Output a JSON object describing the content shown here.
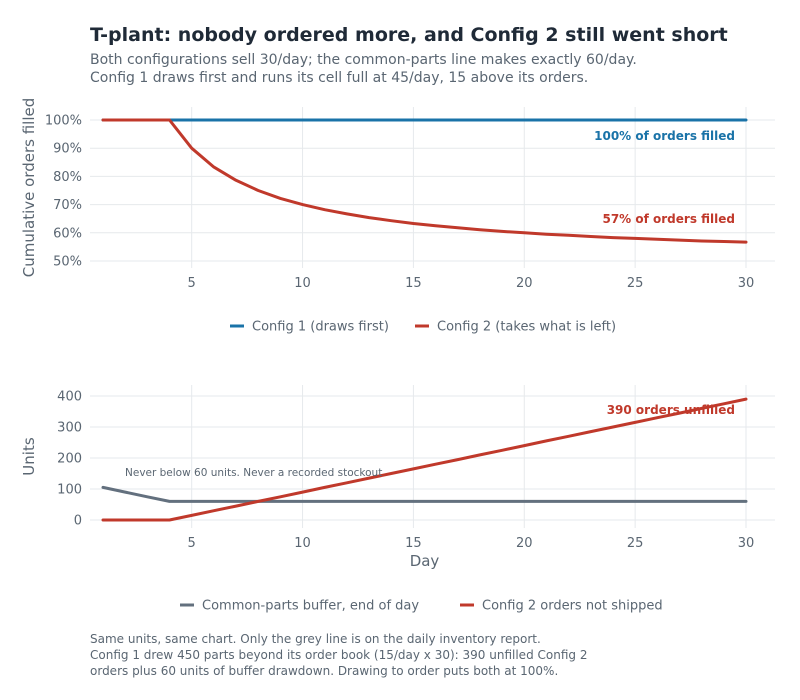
{
  "title": "T-plant: nobody ordered more, and Config 2 still went short",
  "subtitle": [
    "Both configurations sell 30/day; the common-parts line makes exactly 60/day.",
    "Config 1 draws first and runs its cell full at 45/day, 15 above its orders."
  ],
  "footnote": [
    "Same units, same chart. Only the grey line is on the daily inventory report.",
    "Config 1 drew 450 parts beyond its order book (15/day x 30): 390 unfilled Config 2",
    "orders plus 60 units of buffer drawdown. Drawing to order puts both at 100%."
  ],
  "chart_data": [
    {
      "type": "line",
      "ylabel": "Cumulative orders filled",
      "xlabel": "",
      "xlim": [
        1,
        30
      ],
      "ylim": [
        50,
        100
      ],
      "xticks": [
        5,
        10,
        15,
        20,
        25,
        30
      ],
      "yticks": [
        50,
        60,
        70,
        80,
        90,
        100
      ],
      "ytick_labels": [
        "50%",
        "60%",
        "70%",
        "80%",
        "90%",
        "100%"
      ],
      "x": [
        1,
        2,
        3,
        4,
        5,
        6,
        7,
        8,
        9,
        10,
        11,
        12,
        13,
        14,
        15,
        16,
        17,
        18,
        19,
        20,
        21,
        22,
        23,
        24,
        25,
        26,
        27,
        28,
        29,
        30
      ],
      "series": [
        {
          "name": "Config 1 (draws first)",
          "color": "#1a73a8",
          "values": [
            100,
            100,
            100,
            100,
            100,
            100,
            100,
            100,
            100,
            100,
            100,
            100,
            100,
            100,
            100,
            100,
            100,
            100,
            100,
            100,
            100,
            100,
            100,
            100,
            100,
            100,
            100,
            100,
            100,
            100
          ]
        },
        {
          "name": "Config 2 (takes what is left)",
          "color": "#c0392b",
          "values": [
            100,
            100,
            100,
            100,
            90,
            83.3,
            78.6,
            75,
            72.2,
            70,
            68.2,
            66.7,
            65.4,
            64.3,
            63.3,
            62.5,
            61.8,
            61.1,
            60.5,
            60,
            59.5,
            59.1,
            58.7,
            58.3,
            58,
            57.7,
            57.4,
            57.1,
            56.9,
            56.7
          ]
        }
      ],
      "annotations": [
        {
          "text": "100% of orders filled",
          "color": "#1a73a8"
        },
        {
          "text": "57% of orders filled",
          "color": "#c0392b"
        }
      ],
      "legend": "bottom"
    },
    {
      "type": "line",
      "ylabel": "Units",
      "xlabel": "Day",
      "xlim": [
        1,
        30
      ],
      "ylim": [
        0,
        400
      ],
      "xticks": [
        5,
        10,
        15,
        20,
        25,
        30
      ],
      "yticks": [
        0,
        100,
        200,
        300,
        400
      ],
      "ytick_labels": [
        "0",
        "100",
        "200",
        "300",
        "400"
      ],
      "x": [
        1,
        2,
        3,
        4,
        5,
        6,
        7,
        8,
        9,
        10,
        11,
        12,
        13,
        14,
        15,
        16,
        17,
        18,
        19,
        20,
        21,
        22,
        23,
        24,
        25,
        26,
        27,
        28,
        29,
        30
      ],
      "series": [
        {
          "name": "Common-parts buffer, end of day",
          "color": "#63707e",
          "values": [
            105,
            90,
            75,
            60,
            60,
            60,
            60,
            60,
            60,
            60,
            60,
            60,
            60,
            60,
            60,
            60,
            60,
            60,
            60,
            60,
            60,
            60,
            60,
            60,
            60,
            60,
            60,
            60,
            60,
            60
          ]
        },
        {
          "name": "Config 2 orders not shipped",
          "color": "#c0392b",
          "values": [
            0,
            0,
            0,
            0,
            15,
            30,
            45,
            60,
            75,
            90,
            105,
            120,
            135,
            150,
            165,
            180,
            195,
            210,
            225,
            240,
            255,
            270,
            285,
            300,
            315,
            330,
            345,
            360,
            375,
            390
          ]
        }
      ],
      "annotations": [
        {
          "text": "Never below 60 units. Never a recorded stockout",
          "color": "#5a6672"
        },
        {
          "text": "390 orders unfilled",
          "color": "#c0392b"
        }
      ],
      "legend": "bottom"
    }
  ]
}
